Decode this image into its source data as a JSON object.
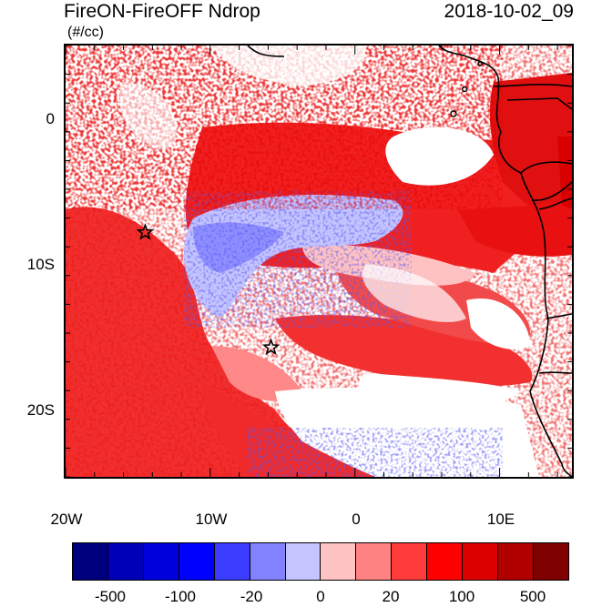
{
  "title": "FireON-FireOFF Ndrop",
  "units": "(#/cc)",
  "datetime": "2018-10-02_09",
  "map": {
    "lat_labels": [
      "0",
      "10S",
      "20S"
    ],
    "lon_labels": [
      "20W",
      "10W",
      "0",
      "10E"
    ],
    "lon_range": [
      -20,
      15
    ],
    "lat_range": [
      -25,
      5
    ],
    "markers": [
      {
        "name": "star",
        "lon": -14.5,
        "lat": -8.0
      },
      {
        "name": "star",
        "lon": -5.8,
        "lat": -16.0
      }
    ]
  },
  "colorbar": {
    "colors": [
      "#00007e",
      "#0000b8",
      "#0000dc",
      "#0000ff",
      "#3c3cff",
      "#8282ff",
      "#c4c4ff",
      "#ffc2c2",
      "#ff8282",
      "#ff3c3c",
      "#ff0000",
      "#dc0000",
      "#b00000",
      "#7e0000"
    ],
    "labels": [
      "-500",
      "-100",
      "-20",
      "0",
      "20",
      "100",
      "500"
    ]
  }
}
